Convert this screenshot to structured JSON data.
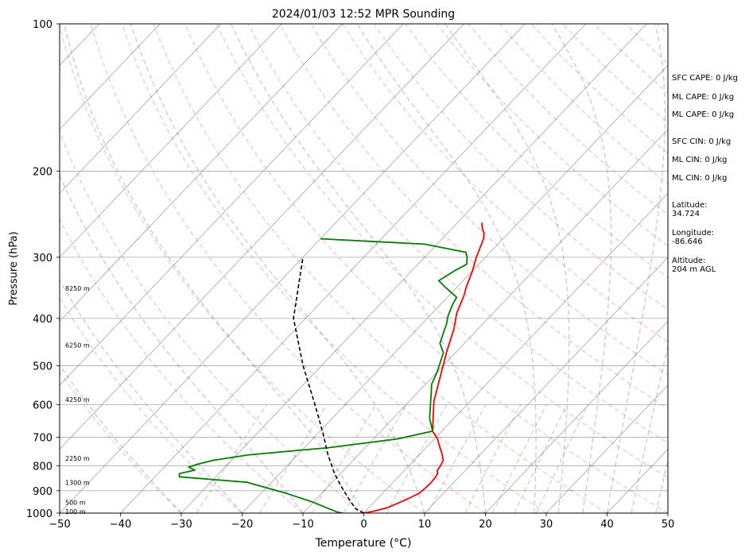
{
  "chart_data": {
    "type": "line",
    "title": "2024/01/03 12:52 MPR Sounding",
    "xlabel": "Temperature (°C)",
    "ylabel": "Pressure (hPa)",
    "xlim": [
      -50,
      50
    ],
    "ylim": [
      1000,
      100
    ],
    "y_scale": "log",
    "grid": true,
    "x_ticks": [
      "−50",
      "−40",
      "−30",
      "−20",
      "−10",
      "0",
      "10",
      "20",
      "30",
      "40",
      "50"
    ],
    "y_ticks": [
      "100",
      "200",
      "300",
      "400",
      "500",
      "600",
      "700",
      "800",
      "900",
      "1000"
    ],
    "series": [
      {
        "color": "#ff0000",
        "x": [
          0,
          1.5,
          3,
          4,
          5,
          6,
          6.2,
          6.3,
          6.2,
          6,
          5.4,
          5.2,
          4.8,
          3.5,
          2,
          0.5,
          -1.5,
          -6,
          -10,
          -11.5,
          -14,
          -16,
          -17.5,
          -18.5,
          -20,
          -21.5,
          -22.5,
          -23.2,
          -24,
          -25,
          -26
        ],
        "y": [
          1000,
          990,
          975,
          955,
          935,
          910,
          890,
          870,
          850,
          832,
          818,
          800,
          780,
          755,
          730,
          705,
          680,
          590,
          500,
          470,
          420,
          390,
          360,
          345,
          320,
          300,
          285,
          275,
          268,
          262,
          255
        ]
      },
      {
        "color": "#008000",
        "x": [
          -3.5,
          -4.5,
          -7,
          -10,
          -16,
          -24,
          -36,
          -36.5,
          -34.5,
          -36,
          -35,
          -33,
          -28,
          -16,
          -6,
          -1.5,
          -4,
          -6,
          -9,
          -10,
          -12,
          -14,
          -15,
          -16,
          -17,
          -18,
          -18.5,
          -22,
          -24,
          -23,
          -22,
          -23,
          -24,
          -32,
          -50
        ],
        "y": [
          1000,
          995,
          975,
          950,
          910,
          865,
          843,
          830,
          817,
          805,
          795,
          780,
          760,
          735,
          705,
          680,
          640,
          600,
          545,
          515,
          470,
          450,
          430,
          410,
          395,
          375,
          362,
          345,
          335,
          320,
          310,
          300,
          293,
          282,
          275
        ]
      },
      {
        "color": "#000000",
        "x": [
          0,
          -2,
          -5,
          -8,
          -11,
          -15,
          -19,
          -25,
          -33,
          -42,
          -50
        ],
        "y": [
          1000,
          980,
          930,
          880,
          830,
          760,
          690,
          600,
          500,
          400,
          300
        ]
      }
    ],
    "height_labels": [
      {
        "label": "100 m",
        "p": 993
      },
      {
        "label": "500 m",
        "p": 950
      },
      {
        "label": "1300 m",
        "p": 866
      },
      {
        "label": "2250 m",
        "p": 773
      },
      {
        "label": "4250 m",
        "p": 586
      },
      {
        "label": "6250 m",
        "p": 454
      },
      {
        "label": "8250 m",
        "p": 347
      }
    ]
  },
  "info": {
    "sfc_cape": "SFC CAPE: 0 J/kg",
    "ml_cape_1": "ML CAPE: 0 J/kg",
    "ml_cape_2": "ML CAPE: 0 J/kg",
    "sfc_cin": "SFC CIN: 0 J/kg",
    "ml_cin_1": "ML CIN: 0 J/kg",
    "ml_cin_2": "ML CIN: 0 J/kg",
    "latitude_label": "Latitude:",
    "latitude": "34.724",
    "longitude_label": "Longitude:",
    "longitude": "-86.646",
    "altitude_label": "Altitude:",
    "altitude": "204 m AGL"
  }
}
